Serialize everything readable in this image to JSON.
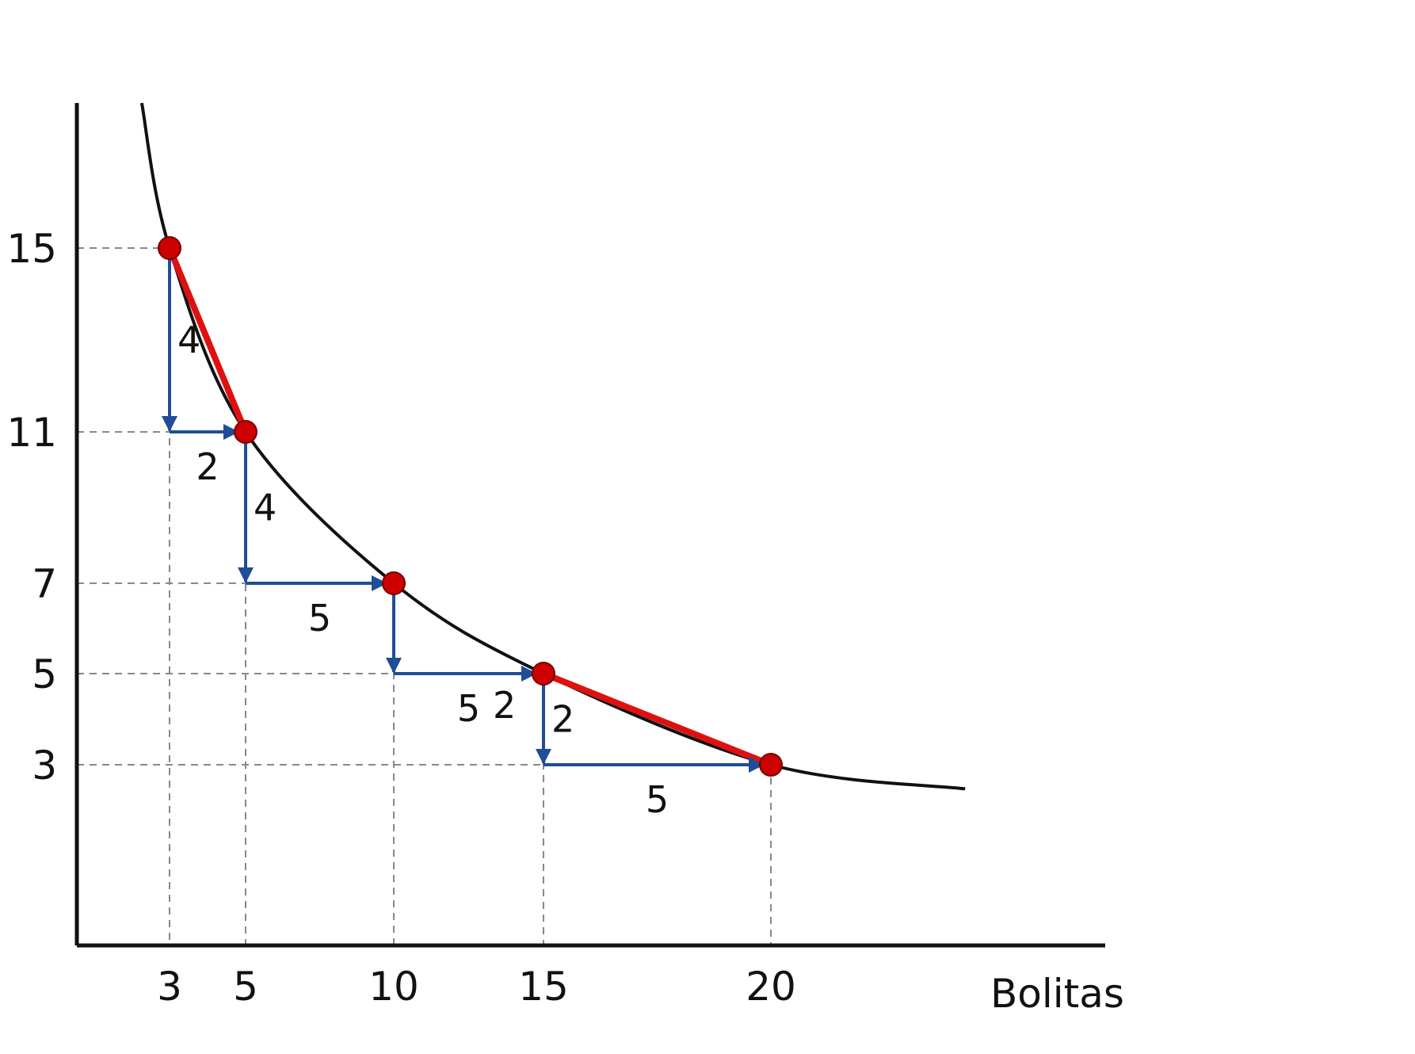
{
  "chart_data": {
    "type": "line",
    "title": "",
    "xlabel": "Bolitas",
    "ylabel": "",
    "x_ticks": [
      "3",
      "5",
      "10",
      "15",
      "20"
    ],
    "y_ticks": [
      "15",
      "11",
      "7",
      "5",
      "3"
    ],
    "series": [
      {
        "x": [
          3,
          5,
          10,
          15,
          20
        ],
        "y": [
          15,
          11,
          7,
          5,
          3
        ]
      }
    ],
    "highlighted_segments": [
      {
        "from": [
          3,
          15
        ],
        "to": [
          5,
          11
        ]
      },
      {
        "from": [
          15,
          5
        ],
        "to": [
          20,
          3
        ]
      }
    ],
    "steps": [
      {
        "from": [
          3,
          15
        ],
        "dy_label": "4",
        "dx_label": "2"
      },
      {
        "from": [
          5,
          11
        ],
        "dy_label": "4",
        "dx_label": "5"
      },
      {
        "from": [
          10,
          7
        ],
        "dy_label": "2",
        "dx_label": "5"
      },
      {
        "from": [
          15,
          5
        ],
        "dy_label": "2",
        "dx_label": "5"
      }
    ],
    "colors": {
      "curve": "#111111",
      "points": "#cc0000",
      "highlight": "#dd1111",
      "arrows": "#1f4e96",
      "guides": "#888888",
      "axes": "#111111"
    },
    "grid": false,
    "legend": "none"
  }
}
